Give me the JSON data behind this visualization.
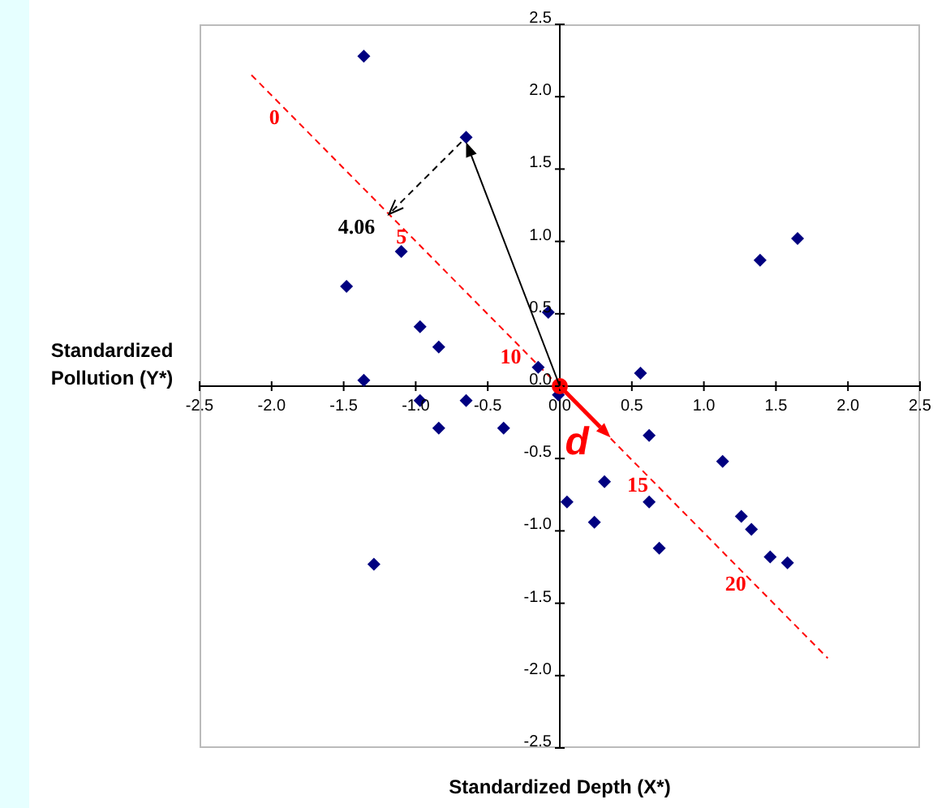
{
  "chart_data": {
    "type": "scatter",
    "xlabel": "Standardized Depth (X*)",
    "ylabel": "Standardized Pollution (Y*)",
    "xlim": [
      -2.5,
      2.5
    ],
    "ylim": [
      -2.5,
      2.5
    ],
    "xticks": [
      -2.5,
      {
        "value": -2,
        "label": "-2.0"
      },
      -1.5,
      {
        "value": -1,
        "label": "-1.0"
      },
      -0.5,
      {
        "value": 0,
        "label": "0.0"
      },
      0.5,
      {
        "value": 1,
        "label": "1.0"
      },
      1.5,
      {
        "value": 2,
        "label": "2.0"
      },
      2.5
    ],
    "yticks": [
      -2.5,
      {
        "value": -2,
        "label": "-2.0"
      },
      -1.5,
      {
        "value": -1,
        "label": "-1.0"
      },
      -0.5,
      {
        "value": 0,
        "label": "0.0"
      },
      0.5,
      {
        "value": 1,
        "label": "1.0"
      },
      1.5,
      {
        "value": 2,
        "label": "2.0"
      },
      2.5
    ],
    "series": [
      {
        "type": "line",
        "color": "#ff0000",
        "line_style": "dashed",
        "marker": "none",
        "x": [
          -2.14,
          1.86
        ],
        "values": [
          2.15,
          -1.88
        ]
      },
      {
        "type": "scatter",
        "color": "#000080",
        "marker": "diamond",
        "x": [
          -1.36,
          -0.65,
          -1.1,
          -1.48,
          -0.97,
          -0.84,
          -1.36,
          -0.08,
          -0.15,
          -0.01,
          -0.97,
          -0.84,
          -0.65,
          -0.39,
          -1.29,
          0.05,
          0.56,
          1.39,
          1.65,
          0.62,
          1.13,
          0.31,
          0.62,
          0.24,
          0.69,
          1.26,
          1.33,
          1.46,
          1.58
        ],
        "values": [
          2.28,
          1.72,
          0.93,
          0.69,
          0.41,
          0.27,
          0.04,
          0.51,
          0.13,
          -0.06,
          -0.1,
          -0.29,
          -0.1,
          -0.29,
          -1.23,
          -0.8,
          0.09,
          0.87,
          1.02,
          -0.34,
          -0.52,
          -0.66,
          -0.8,
          -0.94,
          -1.12,
          -0.9,
          -0.99,
          -1.18,
          -1.22
        ]
      },
      {
        "type": "scatter",
        "color": "#ff0000",
        "marker": "circle",
        "x": [
          0
        ],
        "values": [
          0
        ]
      }
    ],
    "annotations": [
      "0",
      {
        "text": "5",
        "x": -1.1,
        "y": 1.02
      },
      "10",
      "15",
      "20",
      {
        "text": "4.06",
        "x": -1.23,
        "y": 1.2
      },
      "d"
    ]
  }
}
